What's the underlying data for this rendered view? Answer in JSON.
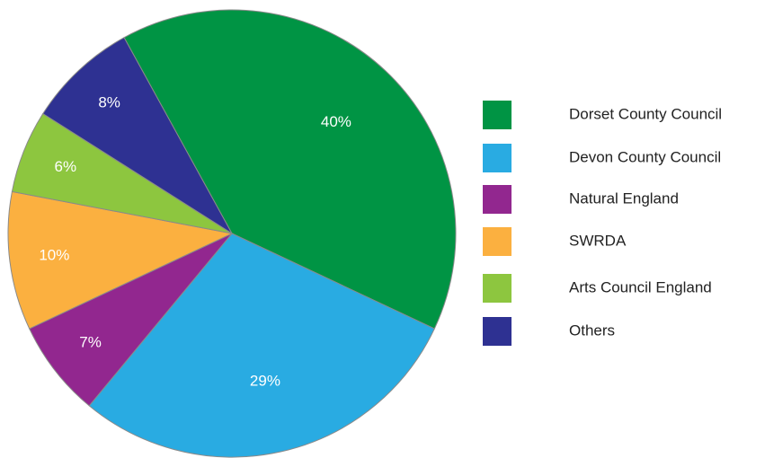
{
  "chart_data": {
    "type": "pie",
    "categories": [
      "Dorset County Council",
      "Devon County Council",
      "Natural England",
      "SWRDA",
      "Arts Council England",
      "Others"
    ],
    "values": [
      40,
      29,
      7,
      10,
      6,
      8
    ],
    "value_labels": [
      "40%",
      "29%",
      "7%",
      "10%",
      "6%",
      "8%"
    ],
    "colors": [
      "#009444",
      "#29abe2",
      "#92278f",
      "#fbb040",
      "#8dc63f",
      "#2e3192"
    ]
  }
}
